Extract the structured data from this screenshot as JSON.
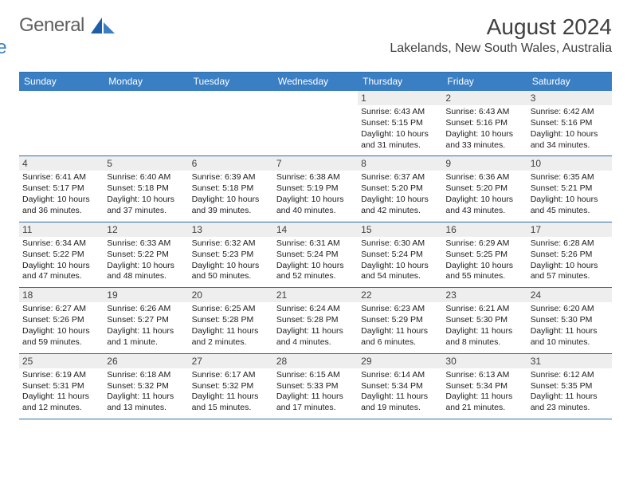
{
  "brand": {
    "part1": "General",
    "part2": "Blue"
  },
  "title": "August 2024",
  "location": "Lakelands, New South Wales, Australia",
  "colors": {
    "header_bg": "#3a7fc4",
    "header_text": "#ffffff",
    "rule": "#2f6fa8",
    "daybar_bg": "#eeeeee",
    "text": "#202020",
    "title_text": "#404040",
    "logo_gray": "#5f5f5f",
    "logo_blue": "#3a7fc4",
    "page_bg": "#ffffff"
  },
  "fonts": {
    "title_size_pt": 21,
    "location_size_pt": 12,
    "dayhead_size_pt": 9,
    "daynum_size_pt": 9,
    "body_size_pt": 8
  },
  "day_names": [
    "Sunday",
    "Monday",
    "Tuesday",
    "Wednesday",
    "Thursday",
    "Friday",
    "Saturday"
  ],
  "weeks": [
    [
      {
        "n": "",
        "sunrise": "",
        "sunset": "",
        "daylight": ""
      },
      {
        "n": "",
        "sunrise": "",
        "sunset": "",
        "daylight": ""
      },
      {
        "n": "",
        "sunrise": "",
        "sunset": "",
        "daylight": ""
      },
      {
        "n": "",
        "sunrise": "",
        "sunset": "",
        "daylight": ""
      },
      {
        "n": "1",
        "sunrise": "Sunrise: 6:43 AM",
        "sunset": "Sunset: 5:15 PM",
        "daylight": "Daylight: 10 hours and 31 minutes."
      },
      {
        "n": "2",
        "sunrise": "Sunrise: 6:43 AM",
        "sunset": "Sunset: 5:16 PM",
        "daylight": "Daylight: 10 hours and 33 minutes."
      },
      {
        "n": "3",
        "sunrise": "Sunrise: 6:42 AM",
        "sunset": "Sunset: 5:16 PM",
        "daylight": "Daylight: 10 hours and 34 minutes."
      }
    ],
    [
      {
        "n": "4",
        "sunrise": "Sunrise: 6:41 AM",
        "sunset": "Sunset: 5:17 PM",
        "daylight": "Daylight: 10 hours and 36 minutes."
      },
      {
        "n": "5",
        "sunrise": "Sunrise: 6:40 AM",
        "sunset": "Sunset: 5:18 PM",
        "daylight": "Daylight: 10 hours and 37 minutes."
      },
      {
        "n": "6",
        "sunrise": "Sunrise: 6:39 AM",
        "sunset": "Sunset: 5:18 PM",
        "daylight": "Daylight: 10 hours and 39 minutes."
      },
      {
        "n": "7",
        "sunrise": "Sunrise: 6:38 AM",
        "sunset": "Sunset: 5:19 PM",
        "daylight": "Daylight: 10 hours and 40 minutes."
      },
      {
        "n": "8",
        "sunrise": "Sunrise: 6:37 AM",
        "sunset": "Sunset: 5:20 PM",
        "daylight": "Daylight: 10 hours and 42 minutes."
      },
      {
        "n": "9",
        "sunrise": "Sunrise: 6:36 AM",
        "sunset": "Sunset: 5:20 PM",
        "daylight": "Daylight: 10 hours and 43 minutes."
      },
      {
        "n": "10",
        "sunrise": "Sunrise: 6:35 AM",
        "sunset": "Sunset: 5:21 PM",
        "daylight": "Daylight: 10 hours and 45 minutes."
      }
    ],
    [
      {
        "n": "11",
        "sunrise": "Sunrise: 6:34 AM",
        "sunset": "Sunset: 5:22 PM",
        "daylight": "Daylight: 10 hours and 47 minutes."
      },
      {
        "n": "12",
        "sunrise": "Sunrise: 6:33 AM",
        "sunset": "Sunset: 5:22 PM",
        "daylight": "Daylight: 10 hours and 48 minutes."
      },
      {
        "n": "13",
        "sunrise": "Sunrise: 6:32 AM",
        "sunset": "Sunset: 5:23 PM",
        "daylight": "Daylight: 10 hours and 50 minutes."
      },
      {
        "n": "14",
        "sunrise": "Sunrise: 6:31 AM",
        "sunset": "Sunset: 5:24 PM",
        "daylight": "Daylight: 10 hours and 52 minutes."
      },
      {
        "n": "15",
        "sunrise": "Sunrise: 6:30 AM",
        "sunset": "Sunset: 5:24 PM",
        "daylight": "Daylight: 10 hours and 54 minutes."
      },
      {
        "n": "16",
        "sunrise": "Sunrise: 6:29 AM",
        "sunset": "Sunset: 5:25 PM",
        "daylight": "Daylight: 10 hours and 55 minutes."
      },
      {
        "n": "17",
        "sunrise": "Sunrise: 6:28 AM",
        "sunset": "Sunset: 5:26 PM",
        "daylight": "Daylight: 10 hours and 57 minutes."
      }
    ],
    [
      {
        "n": "18",
        "sunrise": "Sunrise: 6:27 AM",
        "sunset": "Sunset: 5:26 PM",
        "daylight": "Daylight: 10 hours and 59 minutes."
      },
      {
        "n": "19",
        "sunrise": "Sunrise: 6:26 AM",
        "sunset": "Sunset: 5:27 PM",
        "daylight": "Daylight: 11 hours and 1 minute."
      },
      {
        "n": "20",
        "sunrise": "Sunrise: 6:25 AM",
        "sunset": "Sunset: 5:28 PM",
        "daylight": "Daylight: 11 hours and 2 minutes."
      },
      {
        "n": "21",
        "sunrise": "Sunrise: 6:24 AM",
        "sunset": "Sunset: 5:28 PM",
        "daylight": "Daylight: 11 hours and 4 minutes."
      },
      {
        "n": "22",
        "sunrise": "Sunrise: 6:23 AM",
        "sunset": "Sunset: 5:29 PM",
        "daylight": "Daylight: 11 hours and 6 minutes."
      },
      {
        "n": "23",
        "sunrise": "Sunrise: 6:21 AM",
        "sunset": "Sunset: 5:30 PM",
        "daylight": "Daylight: 11 hours and 8 minutes."
      },
      {
        "n": "24",
        "sunrise": "Sunrise: 6:20 AM",
        "sunset": "Sunset: 5:30 PM",
        "daylight": "Daylight: 11 hours and 10 minutes."
      }
    ],
    [
      {
        "n": "25",
        "sunrise": "Sunrise: 6:19 AM",
        "sunset": "Sunset: 5:31 PM",
        "daylight": "Daylight: 11 hours and 12 minutes."
      },
      {
        "n": "26",
        "sunrise": "Sunrise: 6:18 AM",
        "sunset": "Sunset: 5:32 PM",
        "daylight": "Daylight: 11 hours and 13 minutes."
      },
      {
        "n": "27",
        "sunrise": "Sunrise: 6:17 AM",
        "sunset": "Sunset: 5:32 PM",
        "daylight": "Daylight: 11 hours and 15 minutes."
      },
      {
        "n": "28",
        "sunrise": "Sunrise: 6:15 AM",
        "sunset": "Sunset: 5:33 PM",
        "daylight": "Daylight: 11 hours and 17 minutes."
      },
      {
        "n": "29",
        "sunrise": "Sunrise: 6:14 AM",
        "sunset": "Sunset: 5:34 PM",
        "daylight": "Daylight: 11 hours and 19 minutes."
      },
      {
        "n": "30",
        "sunrise": "Sunrise: 6:13 AM",
        "sunset": "Sunset: 5:34 PM",
        "daylight": "Daylight: 11 hours and 21 minutes."
      },
      {
        "n": "31",
        "sunrise": "Sunrise: 6:12 AM",
        "sunset": "Sunset: 5:35 PM",
        "daylight": "Daylight: 11 hours and 23 minutes."
      }
    ]
  ]
}
